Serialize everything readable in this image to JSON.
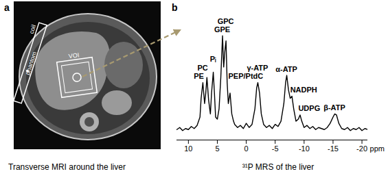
{
  "image_panel": {
    "letter": "a",
    "caption": "Transverse MRI around the liver",
    "labels": {
      "coil": "coil",
      "phantom": "phantom",
      "voi": "VOI"
    }
  },
  "chart_data": {
    "type": "line",
    "letter": "b",
    "caption": "³¹P MRS of the liver",
    "x": [
      12,
      11.5,
      11,
      10.5,
      10,
      9.5,
      9,
      8.5,
      8,
      7.8,
      7.5,
      7.2,
      7.0,
      6.8,
      6.5,
      6.2,
      6.0,
      5.7,
      5.5,
      5.3,
      5.0,
      4.7,
      4.4,
      4.1,
      3.9,
      3.7,
      3.5,
      3.3,
      3.1,
      2.8,
      2.5,
      2.2,
      2.0,
      1.5,
      1.0,
      0.5,
      0,
      -0.5,
      -1,
      -1.5,
      -1.8,
      -2,
      -2.3,
      -2.6,
      -3,
      -3.5,
      -4,
      -4.5,
      -5,
      -5.5,
      -6,
      -6.5,
      -6.8,
      -7,
      -7.3,
      -7.6,
      -7.9,
      -8.2,
      -8.6,
      -9,
      -9.3,
      -9.6,
      -10,
      -10.5,
      -11,
      -11.5,
      -12,
      -12.5,
      -13,
      -13.5,
      -14,
      -14.5,
      -15,
      -15.3,
      -15.6,
      -16,
      -16.5,
      -17,
      -17.5,
      -18,
      -18.5,
      -19,
      -19.5,
      -20,
      -20.5,
      -21
    ],
    "values": [
      10,
      12,
      9,
      11,
      10,
      13,
      11,
      14,
      22,
      40,
      55,
      35,
      45,
      60,
      38,
      25,
      45,
      65,
      45,
      22,
      20,
      30,
      60,
      100,
      70,
      85,
      95,
      55,
      35,
      45,
      25,
      18,
      15,
      12,
      14,
      11,
      16,
      12,
      15,
      30,
      50,
      55,
      45,
      25,
      15,
      12,
      14,
      11,
      15,
      13,
      18,
      35,
      55,
      62,
      48,
      40,
      42,
      30,
      18,
      20,
      24,
      18,
      12,
      14,
      11,
      13,
      10,
      12,
      11,
      10,
      12,
      16,
      22,
      25,
      24,
      16,
      11,
      10,
      12,
      9,
      11,
      10,
      12,
      9,
      11,
      10
    ],
    "color": "#000000",
    "xlim": [
      12,
      -21
    ],
    "xticks": [
      10,
      5,
      0,
      -5,
      -10,
      -15,
      -20
    ],
    "xlabel": "ppm",
    "ylim": [
      0,
      130
    ],
    "tick_labels": "x",
    "peaks": [
      {
        "label": "PE",
        "ppm": 7.5
      },
      {
        "label": "PC",
        "ppm": 6.8
      },
      {
        "label": "Pᵢ",
        "ppm": 5.7
      },
      {
        "label": "GPE",
        "ppm": 4.1
      },
      {
        "label": "GPC",
        "ppm": 3.5
      },
      {
        "label": "PEP/PtdC",
        "ppm": 2.8
      },
      {
        "label": "γ-ATP",
        "ppm": -2.0
      },
      {
        "label": "α-ATP",
        "ppm": -7.0
      },
      {
        "label": "NADPH",
        "ppm": -7.9
      },
      {
        "label": "UDPG",
        "ppm": -9.3
      },
      {
        "label": "β-ATP",
        "ppm": -15.3
      }
    ]
  }
}
